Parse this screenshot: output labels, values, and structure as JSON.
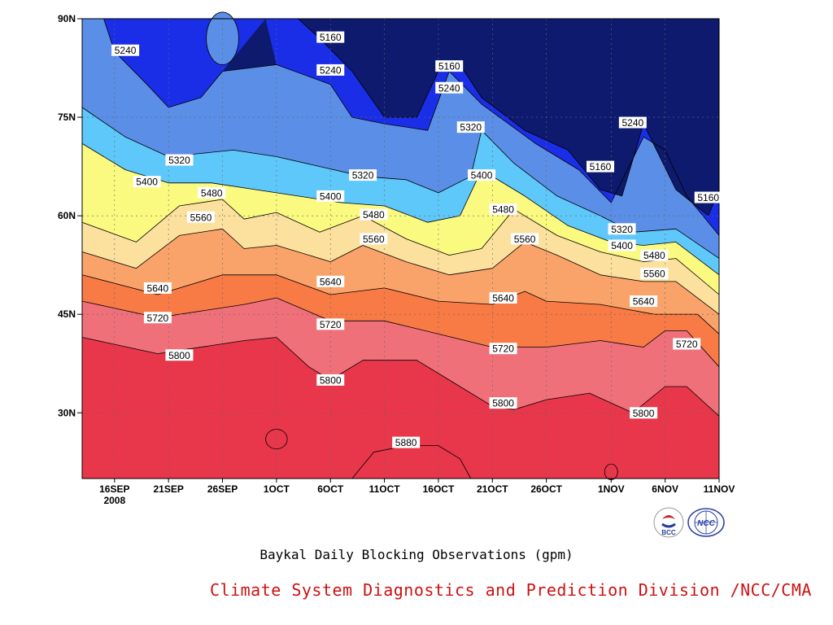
{
  "chart_data": {
    "type": "heatmap",
    "title": "Baykal Daily Blocking Observations (gpm)",
    "subtitle": "",
    "ylabel": "",
    "xlabel": "",
    "x_tick_labels": [
      "16SEP",
      "21SEP",
      "26SEP",
      "1OCT",
      "6OCT",
      "11OCT",
      "16OCT",
      "21OCT",
      "26OCT",
      "1NOV",
      "6NOV",
      "11NOV"
    ],
    "x_year_label": "2008",
    "y_tick_labels": [
      "30N",
      "45N",
      "60N",
      "75N",
      "90N"
    ],
    "y_tick_values": [
      30,
      45,
      60,
      75,
      90
    ],
    "ylim": [
      20,
      90
    ],
    "x_range": [
      "2008-09-13",
      "2008-11-11"
    ],
    "contour_levels": [
      5160,
      5240,
      5320,
      5400,
      5480,
      5560,
      5640,
      5720,
      5800,
      5880
    ],
    "fill_colors": [
      "#0e1a6e",
      "#1a2ee8",
      "#4a55ee",
      "#5b8ee6",
      "#5ec8fa",
      "#fafa80",
      "#fce09e",
      "#f9a36a",
      "#f87a45",
      "#f0707a",
      "#e8364a"
    ],
    "contour_lines": [
      {
        "level": 5800,
        "points": [
          [
            "2008-09-13",
            41.5
          ],
          [
            "2008-09-20",
            39
          ],
          [
            "2008-09-28",
            41
          ],
          [
            "2008-10-01",
            41.5
          ],
          [
            "2008-10-04",
            37
          ],
          [
            "2008-10-06",
            35
          ],
          [
            "2008-10-09",
            38
          ],
          [
            "2008-10-14",
            38
          ],
          [
            "2008-10-17",
            35
          ],
          [
            "2008-10-21",
            31
          ],
          [
            "2008-10-23",
            30.5
          ],
          [
            "2008-10-26",
            32
          ],
          [
            "2008-10-30",
            33
          ],
          [
            "2008-11-03",
            30
          ],
          [
            "2008-11-06",
            34
          ],
          [
            "2008-11-08",
            34
          ],
          [
            "2008-11-11",
            29.5
          ]
        ]
      },
      {
        "level": 5720,
        "points": [
          [
            "2008-09-13",
            47
          ],
          [
            "2008-09-20",
            44.5
          ],
          [
            "2008-09-28",
            46.5
          ],
          [
            "2008-10-01",
            47.5
          ],
          [
            "2008-10-06",
            44
          ],
          [
            "2008-10-11",
            44
          ],
          [
            "2008-10-16",
            42
          ],
          [
            "2008-10-21",
            40
          ],
          [
            "2008-10-26",
            40
          ],
          [
            "2008-10-31",
            41
          ],
          [
            "2008-11-04",
            40
          ],
          [
            "2008-11-06",
            42.5
          ],
          [
            "2008-11-08",
            42.5
          ],
          [
            "2008-11-11",
            37
          ]
        ]
      },
      {
        "level": 5640,
        "points": [
          [
            "2008-09-13",
            51
          ],
          [
            "2008-09-20",
            48
          ],
          [
            "2008-09-26",
            51
          ],
          [
            "2008-10-01",
            51
          ],
          [
            "2008-10-06",
            48
          ],
          [
            "2008-10-11",
            49
          ],
          [
            "2008-10-16",
            47
          ],
          [
            "2008-10-21",
            46.5
          ],
          [
            "2008-10-24",
            48.5
          ],
          [
            "2008-10-26",
            47
          ],
          [
            "2008-10-31",
            46.5
          ],
          [
            "2008-11-05",
            45
          ],
          [
            "2008-11-09",
            45
          ],
          [
            "2008-11-11",
            42
          ]
        ]
      },
      {
        "level": 5560,
        "points": [
          [
            "2008-09-13",
            54.5
          ],
          [
            "2008-09-18",
            52
          ],
          [
            "2008-09-22",
            57
          ],
          [
            "2008-09-26",
            58
          ],
          [
            "2008-09-28",
            55
          ],
          [
            "2008-10-01",
            55.5
          ],
          [
            "2008-10-06",
            53
          ],
          [
            "2008-10-09",
            55.5
          ],
          [
            "2008-10-13",
            53
          ],
          [
            "2008-10-17",
            51
          ],
          [
            "2008-10-21",
            52
          ],
          [
            "2008-10-24",
            56
          ],
          [
            "2008-10-27",
            54
          ],
          [
            "2008-10-31",
            51
          ],
          [
            "2008-11-04",
            50
          ],
          [
            "2008-11-07",
            50
          ],
          [
            "2008-11-11",
            45
          ]
        ]
      },
      {
        "level": 5480,
        "points": [
          [
            "2008-09-13",
            59
          ],
          [
            "2008-09-18",
            56
          ],
          [
            "2008-09-22",
            61.5
          ],
          [
            "2008-09-26",
            62.5
          ],
          [
            "2008-09-28",
            59.5
          ],
          [
            "2008-10-01",
            60.5
          ],
          [
            "2008-10-05",
            57.5
          ],
          [
            "2008-10-09",
            60
          ],
          [
            "2008-10-13",
            56.5
          ],
          [
            "2008-10-17",
            54
          ],
          [
            "2008-10-20",
            55
          ],
          [
            "2008-10-23",
            61
          ],
          [
            "2008-10-27",
            57
          ],
          [
            "2008-10-31",
            54.5
          ],
          [
            "2008-11-04",
            53
          ],
          [
            "2008-11-07",
            53.5
          ],
          [
            "2008-11-11",
            48
          ]
        ]
      },
      {
        "level": 5400,
        "points": [
          [
            "2008-09-13",
            71
          ],
          [
            "2008-09-17",
            67
          ],
          [
            "2008-09-21",
            65
          ],
          [
            "2008-09-25",
            65
          ],
          [
            "2008-09-29",
            64
          ],
          [
            "2008-10-03",
            63
          ],
          [
            "2008-10-07",
            62
          ],
          [
            "2008-10-11",
            61.5
          ],
          [
            "2008-10-15",
            59
          ],
          [
            "2008-10-18",
            60
          ],
          [
            "2008-10-20",
            67
          ],
          [
            "2008-10-24",
            63
          ],
          [
            "2008-10-28",
            58.5
          ],
          [
            "2008-11-01",
            56
          ],
          [
            "2008-11-04",
            55.5
          ],
          [
            "2008-11-07",
            56
          ],
          [
            "2008-11-11",
            51
          ]
        ]
      },
      {
        "level": 5320,
        "points": [
          [
            "2008-09-13",
            76.5
          ],
          [
            "2008-09-17",
            72
          ],
          [
            "2008-09-21",
            69
          ],
          [
            "2008-09-24",
            69.5
          ],
          [
            "2008-09-27",
            70
          ],
          [
            "2008-10-01",
            69
          ],
          [
            "2008-10-05",
            67.5
          ],
          [
            "2008-10-09",
            66
          ],
          [
            "2008-10-13",
            65.5
          ],
          [
            "2008-10-16",
            63.5
          ],
          [
            "2008-10-19",
            66
          ],
          [
            "2008-10-20",
            73
          ],
          [
            "2008-10-23",
            68
          ],
          [
            "2008-10-27",
            63
          ],
          [
            "2008-10-31",
            60
          ],
          [
            "2008-11-03",
            57.5
          ],
          [
            "2008-11-07",
            58
          ],
          [
            "2008-11-11",
            53.5
          ]
        ]
      },
      {
        "level": 5240,
        "points": [
          [
            "2008-09-15",
            90
          ],
          [
            "2008-09-16",
            85
          ],
          [
            "2008-09-19",
            80
          ],
          [
            "2008-09-21",
            76.5
          ],
          [
            "2008-09-24",
            78
          ],
          [
            "2008-09-26",
            82
          ],
          [
            "2008-10-01",
            83
          ],
          [
            "2008-10-06",
            80
          ],
          [
            "2008-10-08",
            75
          ],
          [
            "2008-10-11",
            74
          ],
          [
            "2008-10-15",
            73
          ],
          [
            "2008-10-17",
            82
          ],
          [
            "2008-10-20",
            77
          ],
          [
            "2008-10-25",
            71
          ],
          [
            "2008-10-29",
            67
          ],
          [
            "2008-11-01",
            62
          ],
          [
            "2008-11-04",
            72
          ],
          [
            "2008-11-06",
            70
          ],
          [
            "2008-11-08",
            63
          ],
          [
            "2008-11-11",
            57
          ]
        ]
      },
      {
        "level": 5160,
        "points": [
          [
            "2008-10-03",
            90
          ],
          [
            "2008-10-05",
            87
          ],
          [
            "2008-10-08",
            82
          ],
          [
            "2008-10-11",
            75
          ],
          [
            "2008-10-14",
            75
          ],
          [
            "2008-10-16",
            82
          ],
          [
            "2008-10-18",
            83
          ],
          [
            "2008-10-20",
            78
          ],
          [
            "2008-10-24",
            73
          ],
          [
            "2008-10-28",
            70
          ],
          [
            "2008-10-31",
            64
          ],
          [
            "2008-11-02",
            63
          ],
          [
            "2008-11-04",
            74
          ],
          [
            "2008-11-07",
            64
          ],
          [
            "2008-11-10",
            60
          ],
          [
            "2008-11-11",
            64
          ]
        ]
      },
      {
        "level": 5880,
        "points": [
          [
            "2008-10-08",
            20
          ],
          [
            "2008-10-10",
            24
          ],
          [
            "2008-10-13",
            25
          ],
          [
            "2008-10-16",
            25
          ],
          [
            "2008-10-18",
            23
          ],
          [
            "2008-10-19",
            20
          ]
        ]
      }
    ],
    "closed_contours": [
      {
        "level": 5880,
        "center": [
          "2008-10-01",
          26
        ],
        "half_width_days": 1,
        "half_height_deg": 1.5
      },
      {
        "level": 5880,
        "center": [
          "2008-11-01",
          21
        ],
        "half_width_days": 0.6,
        "half_height_deg": 1.2
      },
      {
        "level": 5320,
        "center": [
          "2008-09-26",
          87
        ],
        "half_width_days": 1.5,
        "half_height_deg": 4
      }
    ],
    "contour_labels": [
      {
        "text": "5240",
        "x": "2008-09-17",
        "y": 85.2
      },
      {
        "text": "5160",
        "x": "2008-10-06",
        "y": 87.2
      },
      {
        "text": "5240",
        "x": "2008-10-06",
        "y": 82.2
      },
      {
        "text": "5160",
        "x": "2008-10-17",
        "y": 82.8
      },
      {
        "text": "5240",
        "x": "2008-10-17",
        "y": 79.5
      },
      {
        "text": "5320",
        "x": "2008-10-19",
        "y": 73.5
      },
      {
        "text": "5320",
        "x": "2008-09-22",
        "y": 68.5
      },
      {
        "text": "5400",
        "x": "2008-09-19",
        "y": 65.2
      },
      {
        "text": "5320",
        "x": "2008-10-09",
        "y": 66.2
      },
      {
        "text": "5400",
        "x": "2008-10-20",
        "y": 66.2
      },
      {
        "text": "5480",
        "x": "2008-09-25",
        "y": 63.5
      },
      {
        "text": "5560",
        "x": "2008-09-24",
        "y": 59.8
      },
      {
        "text": "5400",
        "x": "2008-10-06",
        "y": 63.0
      },
      {
        "text": "5480",
        "x": "2008-10-10",
        "y": 60.2
      },
      {
        "text": "5160",
        "x": "2008-10-31",
        "y": 67.5
      },
      {
        "text": "5240",
        "x": "2008-11-03",
        "y": 74.2
      },
      {
        "text": "5160",
        "x": "2008-11-10",
        "y": 62.8
      },
      {
        "text": "5480",
        "x": "2008-10-22",
        "y": 61.0
      },
      {
        "text": "5560",
        "x": "2008-10-10",
        "y": 56.5
      },
      {
        "text": "5560",
        "x": "2008-10-24",
        "y": 56.5
      },
      {
        "text": "5320",
        "x": "2008-11-02",
        "y": 58.0
      },
      {
        "text": "5400",
        "x": "2008-11-02",
        "y": 55.5
      },
      {
        "text": "5480",
        "x": "2008-11-05",
        "y": 54.0
      },
      {
        "text": "5560",
        "x": "2008-11-05",
        "y": 51.2
      },
      {
        "text": "5640",
        "x": "2008-09-20",
        "y": 49.0
      },
      {
        "text": "5640",
        "x": "2008-10-06",
        "y": 50.0
      },
      {
        "text": "5640",
        "x": "2008-10-22",
        "y": 47.5
      },
      {
        "text": "5640",
        "x": "2008-11-04",
        "y": 47.0
      },
      {
        "text": "5720",
        "x": "2008-09-20",
        "y": 44.5
      },
      {
        "text": "5720",
        "x": "2008-10-06",
        "y": 43.5
      },
      {
        "text": "5720",
        "x": "2008-10-22",
        "y": 39.8
      },
      {
        "text": "5720",
        "x": "2008-11-08",
        "y": 40.5
      },
      {
        "text": "5800",
        "x": "2008-09-22",
        "y": 38.8
      },
      {
        "text": "5800",
        "x": "2008-10-06",
        "y": 35.0
      },
      {
        "text": "5800",
        "x": "2008-10-22",
        "y": 31.5
      },
      {
        "text": "5800",
        "x": "2008-11-04",
        "y": 30.0
      },
      {
        "text": "5880",
        "x": "2008-10-13",
        "y": 25.5
      }
    ],
    "grid": true,
    "legend": "none"
  },
  "footer": {
    "title": "Baykal Daily Blocking Observations (gpm)",
    "organization": "Climate System Diagnostics and Prediction Division /NCC/CMA"
  },
  "logos": [
    {
      "name": "bcc-logo",
      "text": "BCC",
      "color": "#c8202a"
    },
    {
      "name": "ncc-logo",
      "text": "NCC",
      "color": "#2a3ea0"
    }
  ]
}
